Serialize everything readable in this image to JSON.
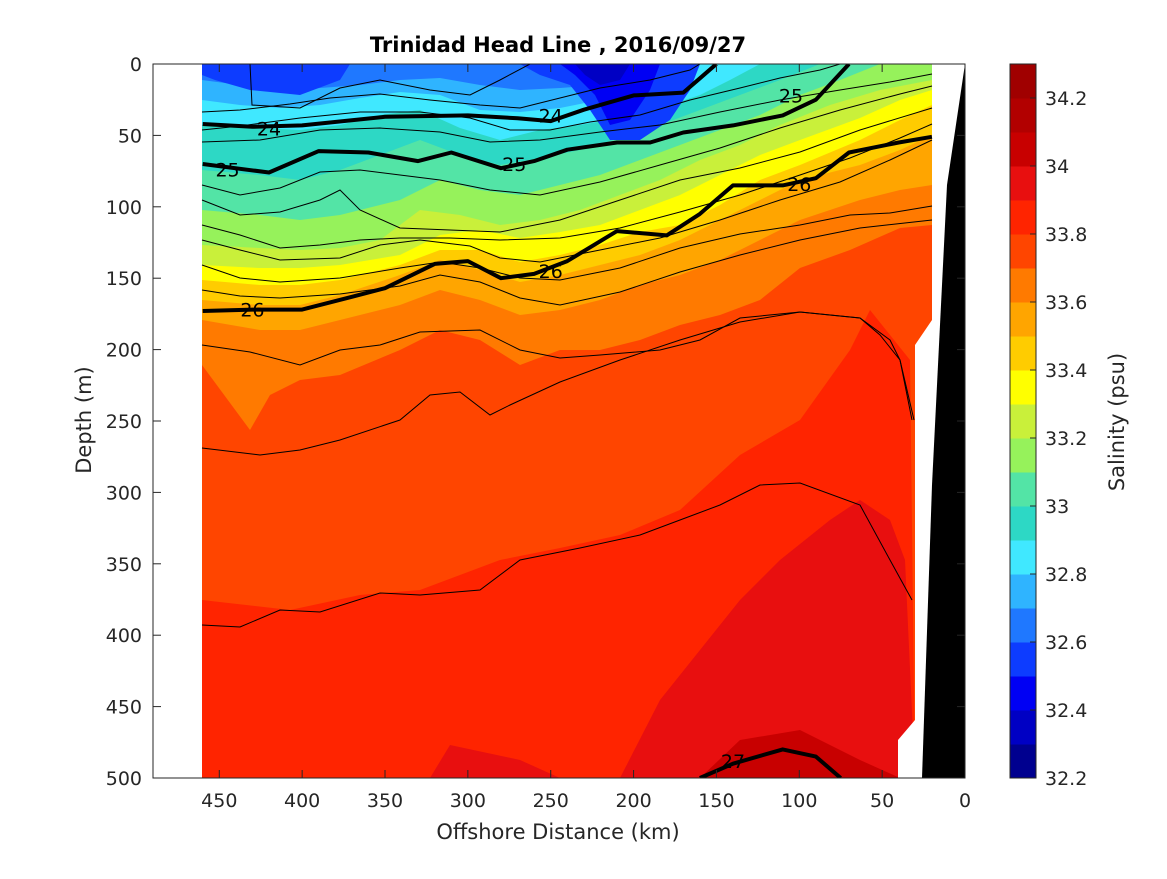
{
  "chart_data": {
    "type": "heatmap",
    "title": "Trinidad Head Line , 2016/09/27",
    "xlabel": "Offshore Distance (km)",
    "ylabel": "Depth (m)",
    "colorbar_label": "Salinity (psu)",
    "xlim": [
      490,
      0
    ],
    "ylim": [
      500,
      0
    ],
    "x_ticks": [
      "450",
      "400",
      "350",
      "300",
      "250",
      "200",
      "150",
      "100",
      "50",
      "0"
    ],
    "y_ticks": [
      "0",
      "50",
      "100",
      "150",
      "200",
      "250",
      "300",
      "350",
      "400",
      "450",
      "500"
    ],
    "colorbar_range": [
      32.2,
      34.3
    ],
    "colorbar_ticks": [
      "32.2",
      "32.4",
      "32.6",
      "32.8",
      "33",
      "33.2",
      "33.4",
      "33.6",
      "33.8",
      "34",
      "34.2"
    ],
    "colormap": [
      "#00008f",
      "#0000c4",
      "#0000f4",
      "#0d3cff",
      "#1f78ff",
      "#2fb4ff",
      "#40e8ff",
      "#2dd8c5",
      "#53e4a6",
      "#96f25b",
      "#c9f03a",
      "#ffff00",
      "#ffcc00",
      "#ffa500",
      "#ff7a00",
      "#ff4500",
      "#ff2400",
      "#e80f0f",
      "#c80000",
      "#b20000",
      "#a00000"
    ],
    "data_x_range_km": [
      460,
      20
    ],
    "density_contours": [
      {
        "label": "24",
        "bold": true,
        "points": [
          [
            460,
            42
          ],
          [
            430,
            44
          ],
          [
            400,
            43
          ],
          [
            350,
            37
          ],
          [
            300,
            36
          ],
          [
            270,
            38
          ],
          [
            250,
            40
          ],
          [
            230,
            32
          ],
          [
            200,
            22
          ],
          [
            170,
            20
          ],
          [
            160,
            10
          ],
          [
            150,
            0
          ]
        ]
      },
      {
        "label": "25",
        "bold": true,
        "points": [
          [
            460,
            70
          ],
          [
            420,
            76
          ],
          [
            390,
            61
          ],
          [
            360,
            62
          ],
          [
            330,
            68
          ],
          [
            310,
            62
          ],
          [
            280,
            73
          ],
          [
            260,
            68
          ],
          [
            240,
            60
          ],
          [
            210,
            55
          ],
          [
            190,
            55
          ],
          [
            170,
            48
          ],
          [
            140,
            43
          ],
          [
            110,
            36
          ],
          [
            90,
            25
          ],
          [
            70,
            0
          ]
        ]
      },
      {
        "label": "26",
        "bold": true,
        "points": [
          [
            460,
            173
          ],
          [
            430,
            172
          ],
          [
            400,
            172
          ],
          [
            370,
            163
          ],
          [
            350,
            157
          ],
          [
            320,
            140
          ],
          [
            300,
            138
          ],
          [
            280,
            150
          ],
          [
            260,
            147
          ],
          [
            240,
            138
          ],
          [
            210,
            117
          ],
          [
            180,
            120
          ],
          [
            160,
            105
          ],
          [
            140,
            85
          ],
          [
            110,
            85
          ],
          [
            90,
            80
          ],
          [
            70,
            62
          ],
          [
            40,
            55
          ],
          [
            20,
            51
          ]
        ]
      },
      {
        "label": "27",
        "bold": true,
        "points": [
          [
            160,
            500
          ],
          [
            140,
            490
          ],
          [
            110,
            480
          ],
          [
            90,
            485
          ],
          [
            75,
            500
          ]
        ]
      }
    ],
    "bottom_topography_km": [
      [
        20,
        500
      ],
      [
        0,
        500
      ],
      [
        0,
        0
      ]
    ],
    "grid": false,
    "legend": "colorbar-right"
  }
}
